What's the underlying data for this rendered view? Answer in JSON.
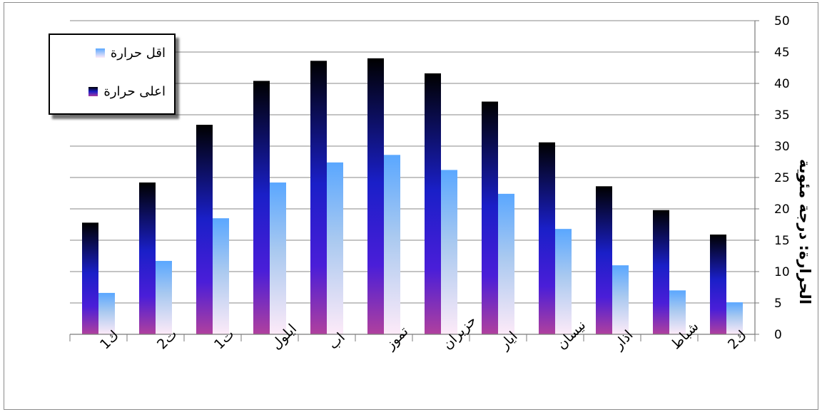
{
  "chart_data": {
    "type": "bar",
    "categories": [
      "ك1",
      "ت2",
      "ت1",
      "ايلول",
      "اب",
      "تموز",
      "حزيران",
      "ايار",
      "نيسان",
      "اذار",
      "شباط",
      "ك2"
    ],
    "series": [
      {
        "name": "اعلى حرارة",
        "values": [
          17.8,
          24.2,
          33.4,
          40.4,
          43.6,
          44.0,
          41.6,
          37.1,
          30.6,
          23.6,
          19.8,
          15.9
        ],
        "color_top": "#000000",
        "color_mid": "#1f1fd4",
        "color_bottom": "#a93aa0"
      },
      {
        "name": "اقل حرارة",
        "values": [
          6.6,
          11.7,
          18.5,
          24.2,
          27.4,
          28.6,
          26.2,
          22.4,
          16.8,
          11.0,
          7.0,
          5.1
        ],
        "color_top": "#5aa7ff",
        "color_bottom": "#fbeaf6"
      }
    ],
    "ylabel": "الحرارة: درجة مئوية",
    "xlabel": "",
    "ylim": [
      0,
      50
    ],
    "yticks": [
      "0",
      "5",
      "10",
      "15",
      "20",
      "25",
      "30",
      "35",
      "40",
      "45",
      "50"
    ],
    "y_axis_side": "right",
    "grid": true,
    "legend_position": "top-left"
  }
}
